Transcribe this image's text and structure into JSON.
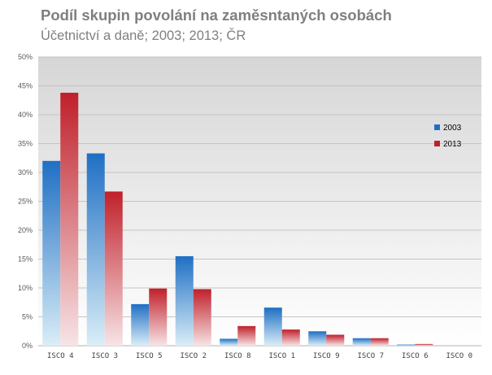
{
  "chart_data": {
    "type": "bar",
    "title": "Podíl skupin povolání na zaměsntaných osobách",
    "subtitle": "Účetnictví a daně; 2003; 2013; ČR",
    "categories": [
      "ISCO 4",
      "ISCO 3",
      "ISCO 5",
      "ISCO 2",
      "ISCO 8",
      "ISCO 1",
      "ISCO 9",
      "ISCO 7",
      "ISCO 6",
      "ISCO 0"
    ],
    "series": [
      {
        "name": "2003",
        "color": "#1f6fc4",
        "values": [
          32.0,
          33.3,
          7.2,
          15.5,
          1.2,
          6.6,
          2.5,
          1.3,
          0.2,
          0.0
        ]
      },
      {
        "name": "2013",
        "color": "#c0202a",
        "values": [
          43.8,
          26.7,
          9.9,
          9.8,
          3.4,
          2.8,
          1.9,
          1.3,
          0.3,
          0.0
        ]
      }
    ],
    "ylim": [
      0,
      50
    ],
    "yticks": [
      "0%",
      "5%",
      "10%",
      "15%",
      "20%",
      "25%",
      "30%",
      "35%",
      "40%",
      "45%",
      "50%"
    ],
    "grid": true,
    "legend": "right"
  }
}
